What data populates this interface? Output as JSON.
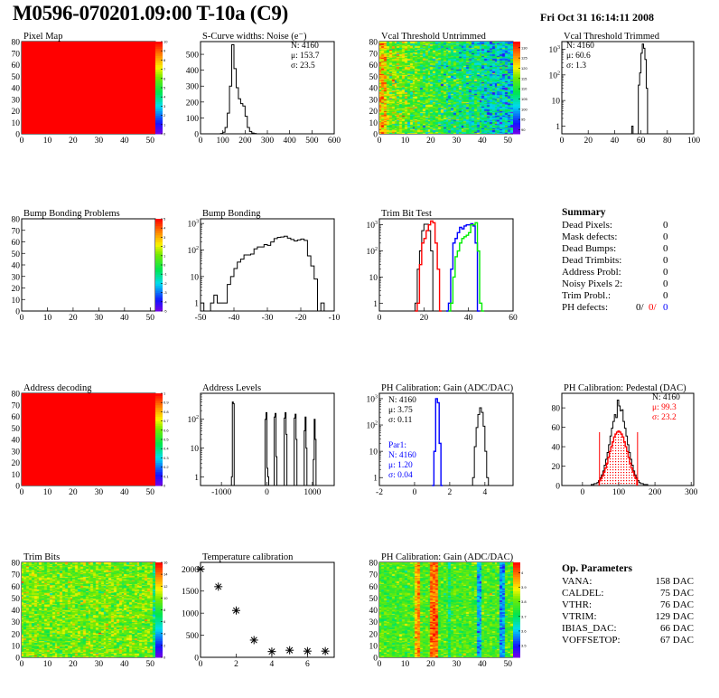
{
  "header": {
    "title": "M0596-070201.09:00 T-10a (C9)",
    "date": "Fri Oct 31 16:14:11 2008"
  },
  "colors": {
    "series_black": "#000000",
    "series_red": "#ff0000",
    "series_blue": "#0000ff",
    "series_green": "#00ee00",
    "palette": "rainbow (purple-blue-cyan-green-yellow-red)"
  },
  "summary": {
    "title": "Summary",
    "items": [
      {
        "label": "Dead Pixels:",
        "value": "0"
      },
      {
        "label": "Mask defects:",
        "value": "0"
      },
      {
        "label": "Dead Bumps:",
        "value": "0"
      },
      {
        "label": "Dead Trimbits:",
        "value": "0"
      },
      {
        "label": "Address Probl:",
        "value": "0"
      },
      {
        "label": "Noisy Pixels 2:",
        "value": "0"
      },
      {
        "label": "Trim Probl.:",
        "value": "0"
      }
    ],
    "ph_defects": {
      "label": "PH defects:",
      "v1": "0/",
      "v2": "0/",
      "v3": "0"
    }
  },
  "op_parameters": {
    "title": "Op. Parameters",
    "items": [
      {
        "label": "VANA:",
        "value": "158 DAC"
      },
      {
        "label": "CALDEL:",
        "value": "75 DAC"
      },
      {
        "label": "VTHR:",
        "value": "76 DAC"
      },
      {
        "label": "VTRIM:",
        "value": "129 DAC"
      },
      {
        "label": "IBIAS_DAC:",
        "value": "66 DAC"
      },
      {
        "label": "VOFFSETOP:",
        "value": "67 DAC"
      }
    ]
  },
  "chart_data": [
    {
      "id": "pixel-map",
      "type": "heatmap",
      "title": "Pixel Map",
      "col": 0,
      "row": 0,
      "xlim": [
        0,
        52
      ],
      "ylim": [
        0,
        80
      ],
      "xticks": [
        0,
        10,
        20,
        30,
        40,
        50
      ],
      "yticks": [
        0,
        10,
        20,
        30,
        40,
        50,
        60,
        70,
        80
      ],
      "zlim": [
        0,
        10
      ],
      "zticks": [
        "0",
        "1",
        "2",
        "3",
        "4",
        "5",
        "6",
        "7",
        "8",
        "9",
        "10"
      ],
      "pattern": "uniform",
      "zvalue": 10
    },
    {
      "id": "s-curve-widths",
      "type": "bar",
      "title": "S-Curve widths: Noise (e⁻)",
      "col": 1,
      "row": 0,
      "xlim": [
        0,
        600
      ],
      "ylim": [
        0,
        580
      ],
      "log": false,
      "xticks": [
        0,
        100,
        200,
        300,
        400,
        500,
        600
      ],
      "yticks": [
        0,
        100,
        200,
        300,
        400,
        500
      ],
      "series": [
        {
          "color": "#000000",
          "start": 80,
          "width": 10,
          "values": [
            0,
            2,
            10,
            40,
            130,
            300,
            560,
            410,
            290,
            220,
            190,
            175,
            110,
            40,
            15,
            5,
            2,
            0
          ]
        }
      ],
      "stats": [
        {
          "color": "#000000",
          "lines": [
            "N: 4160",
            "μ: 153.7",
            "σ: 23.5"
          ]
        }
      ]
    },
    {
      "id": "vcal-threshold-untrimmed",
      "type": "heatmap",
      "title": "Vcal Threshold Untrimmed",
      "col": 2,
      "row": 0,
      "xlim": [
        0,
        52
      ],
      "ylim": [
        0,
        80
      ],
      "xticks": [
        0,
        10,
        20,
        30,
        40,
        50
      ],
      "yticks": [
        0,
        10,
        20,
        30,
        40,
        50,
        60,
        70,
        80
      ],
      "zlim": [
        88,
        133
      ],
      "zticks": [
        "90",
        "95",
        "100",
        "105",
        "110",
        "115",
        "120",
        "125",
        "130"
      ],
      "pattern": "gradient"
    },
    {
      "id": "vcal-threshold-trimmed",
      "type": "bar",
      "title": "Vcal Threshold Trimmed",
      "col": 3,
      "row": 0,
      "xlim": [
        0,
        100
      ],
      "ylim": [
        0.5,
        2000
      ],
      "log": true,
      "xticks": [
        0,
        20,
        40,
        60,
        80,
        100
      ],
      "yticks": [
        1,
        10,
        100,
        1000
      ],
      "series": [
        {
          "color": "#000000",
          "start": 50,
          "width": 1,
          "values": [
            0,
            0,
            0,
            1,
            0,
            0,
            0,
            0,
            40,
            120,
            700,
            1600,
            1100,
            400,
            30,
            0
          ]
        }
      ],
      "stats": [
        {
          "color": "#000000",
          "lines": [
            "N: 4160",
            "μ: 60.6",
            "σ:  1.3"
          ]
        }
      ]
    },
    {
      "id": "bump-bonding-problems",
      "type": "heatmap",
      "title": "Bump Bonding Problems",
      "col": 0,
      "row": 1,
      "xlim": [
        0,
        52
      ],
      "ylim": [
        0,
        80
      ],
      "xticks": [
        0,
        10,
        20,
        30,
        40,
        50
      ],
      "yticks": [
        0,
        10,
        20,
        30,
        40,
        50,
        60,
        70,
        80
      ],
      "zlim": [
        -5,
        5
      ],
      "zticks": [
        "-5",
        "-4",
        "-3",
        "-2",
        "-1",
        "0",
        "1",
        "2",
        "3",
        "4",
        "5"
      ],
      "pattern": "empty"
    },
    {
      "id": "bump-bonding",
      "type": "bar",
      "title": "Bump Bonding",
      "col": 1,
      "row": 1,
      "xlim": [
        -50,
        -10
      ],
      "ylim": [
        0.5,
        1500
      ],
      "log": true,
      "xticks": [
        -50,
        -40,
        -30,
        -20,
        -10
      ],
      "yticks": [
        1,
        10,
        100,
        1000
      ],
      "series": [
        {
          "color": "#000000",
          "start": -50,
          "width": 1,
          "values": [
            1,
            0,
            0,
            1,
            2,
            1,
            1,
            1,
            5,
            10,
            20,
            35,
            45,
            65,
            65,
            70,
            110,
            130,
            130,
            160,
            150,
            200,
            270,
            300,
            310,
            330,
            280,
            250,
            220,
            240,
            260,
            230,
            60,
            25,
            8,
            0,
            1,
            0,
            0,
            0
          ]
        }
      ]
    },
    {
      "id": "trim-bit-test",
      "type": "bar",
      "title": "Trim Bit Test",
      "col": 2,
      "row": 1,
      "xlim": [
        0,
        60
      ],
      "ylim": [
        0.5,
        1700
      ],
      "log": true,
      "xticks": [
        0,
        20,
        40,
        60
      ],
      "yticks": [
        1,
        10,
        100,
        1000
      ],
      "series": [
        {
          "color": "#000000",
          "start": 15,
          "width": 1,
          "values": [
            0,
            1,
            20,
            100,
            600,
            1050,
            1050,
            600,
            100,
            0
          ]
        },
        {
          "color": "#ff0000",
          "start": 16,
          "width": 1,
          "values": [
            0,
            1,
            30,
            200,
            300,
            600,
            1000,
            1400,
            1200,
            200,
            20,
            0
          ]
        },
        {
          "color": "#0000ff",
          "start": 30,
          "width": 1,
          "values": [
            0,
            1,
            20,
            200,
            300,
            500,
            800,
            700,
            900,
            1000,
            1000,
            1100,
            900,
            200,
            0
          ]
        },
        {
          "color": "#00ee00",
          "start": 31,
          "width": 1,
          "values": [
            0,
            1,
            10,
            60,
            100,
            200,
            300,
            350,
            400,
            500,
            1000,
            1000,
            1200,
            100,
            1,
            0
          ]
        }
      ]
    },
    {
      "id": "address-decoding",
      "type": "heatmap",
      "title": "Address decoding",
      "col": 0,
      "row": 2,
      "xlim": [
        0,
        52
      ],
      "ylim": [
        0,
        80
      ],
      "xticks": [
        0,
        10,
        20,
        30,
        40,
        50
      ],
      "yticks": [
        0,
        10,
        20,
        30,
        40,
        50,
        60,
        70,
        80
      ],
      "zlim": [
        0,
        1
      ],
      "zticks": [
        "0",
        "0.1",
        "0.2",
        "0.3",
        "0.4",
        "0.5",
        "0.6",
        "0.7",
        "0.8",
        "0.9",
        "1"
      ],
      "pattern": "uniform",
      "zvalue": 1
    },
    {
      "id": "address-levels",
      "type": "bar",
      "title": "Address Levels",
      "col": 1,
      "row": 2,
      "xlim": [
        -1460,
        1480
      ],
      "ylim": [
        0.5,
        800
      ],
      "log": true,
      "xticks": [
        -1000,
        0,
        1000
      ],
      "yticks": [
        1,
        10,
        100
      ],
      "series": [
        {
          "color": "#000000",
          "start": -780,
          "width": 20,
          "values": [
            1,
            400,
            350,
            0
          ]
        },
        {
          "color": "#000000",
          "start": -40,
          "width": 20,
          "values": [
            100,
            170,
            2,
            1,
            0
          ]
        },
        {
          "color": "#000000",
          "start": 160,
          "width": 20,
          "values": [
            120,
            160,
            5,
            0
          ]
        },
        {
          "color": "#000000",
          "start": 380,
          "width": 20,
          "values": [
            110,
            170,
            30,
            0
          ]
        },
        {
          "color": "#000000",
          "start": 600,
          "width": 20,
          "values": [
            110,
            150,
            20,
            0
          ]
        },
        {
          "color": "#000000",
          "start": 820,
          "width": 20,
          "values": [
            40,
            120,
            10,
            0
          ]
        },
        {
          "color": "#000000",
          "start": 1020,
          "width": 20,
          "values": [
            4,
            100,
            20,
            0
          ]
        }
      ]
    },
    {
      "id": "ph-calibration-gain",
      "type": "bar",
      "title": "PH Calibration: Gain (ADC/DAC)",
      "col": 2,
      "row": 2,
      "xlim": [
        -2,
        5.6
      ],
      "ylim": [
        0.5,
        1600
      ],
      "log": true,
      "xticks": [
        -2,
        0,
        2,
        4
      ],
      "yticks": [
        1,
        10,
        100,
        1000
      ],
      "series": [
        {
          "color": "#000000",
          "start": 3.3,
          "width": 0.1,
          "values": [
            1,
            15,
            80,
            250,
            450,
            300,
            90,
            10,
            1,
            0
          ]
        },
        {
          "color": "#0000ff",
          "start": 1.0,
          "width": 0.1,
          "values": [
            0,
            10,
            1000,
            700,
            20,
            0
          ]
        }
      ],
      "stats": [
        {
          "color": "#000000",
          "lines": [
            "N: 4160",
            "μ: 3.75",
            "σ: 0.11"
          ]
        },
        {
          "color": "#0000ff",
          "lines": [
            "Par1:",
            "N: 4160",
            "μ: 1.20",
            "σ: 0.04"
          ]
        }
      ]
    },
    {
      "id": "ph-calibration-pedestal",
      "type": "bar",
      "title": "PH Calibration: Pedestal (DAC)",
      "col": 3,
      "row": 2,
      "xlim": [
        -57,
        307
      ],
      "ylim": [
        0,
        95
      ],
      "log": false,
      "xticks": [
        0,
        100,
        200,
        300
      ],
      "yticks": [
        0,
        20,
        40,
        60,
        80
      ],
      "series": [
        {
          "color": "#000000",
          "start": 20,
          "width": 4,
          "values": [
            0,
            1,
            1,
            2,
            2,
            3,
            5,
            8,
            11,
            15,
            21,
            27,
            34,
            42,
            51,
            59,
            66,
            73,
            70,
            88,
            82,
            77,
            78,
            66,
            59,
            51,
            42,
            34,
            27,
            21,
            15,
            11,
            8,
            5,
            3,
            2,
            2,
            1,
            1,
            1,
            0,
            0,
            0,
            0,
            0
          ]
        },
        {
          "color": "#ff0000",
          "hatched": true,
          "start": 46,
          "width": 4,
          "values": [
            5,
            7,
            10,
            14,
            18,
            23,
            29,
            35,
            40,
            45,
            50,
            53,
            55,
            56,
            55,
            53,
            50,
            45,
            40,
            35,
            29,
            23,
            18,
            14,
            10,
            7
          ]
        }
      ],
      "cut_lines": [
        {
          "x": 47,
          "y": 55
        },
        {
          "x": 152,
          "y": 55
        }
      ],
      "stats": [
        {
          "color": "#000000",
          "lines": [
            "N: 4160"
          ]
        },
        {
          "color": "#ff0000",
          "lines": [
            "μ: 99.3",
            "σ: 23.2"
          ]
        }
      ]
    },
    {
      "id": "trim-bits",
      "type": "heatmap",
      "title": "Trim Bits",
      "col": 0,
      "row": 3,
      "xlim": [
        0,
        52
      ],
      "ylim": [
        0,
        80
      ],
      "xticks": [
        0,
        10,
        20,
        30,
        40,
        50
      ],
      "yticks": [
        0,
        10,
        20,
        30,
        40,
        50,
        60,
        70,
        80
      ],
      "zlim": [
        0,
        16
      ],
      "zticks": [
        "0",
        "2",
        "4",
        "6",
        "8",
        "10",
        "12",
        "14",
        "16"
      ],
      "pattern": "noise"
    },
    {
      "id": "temperature-calibration",
      "type": "scatter",
      "title": "Temperature calibration",
      "col": 1,
      "row": 3,
      "xlim": [
        0,
        7.5
      ],
      "ylim": [
        0,
        2150
      ],
      "xticks": [
        0,
        2,
        4,
        6
      ],
      "yticks": [
        0,
        500,
        1000,
        1500,
        2000
      ],
      "x": [
        0,
        1,
        2,
        3,
        4,
        5,
        6,
        7
      ],
      "y": [
        2000,
        1600,
        1060,
        390,
        130,
        160,
        140,
        140
      ]
    },
    {
      "id": "ph-calibration-gain-map",
      "type": "heatmap",
      "title": "PH Calibration: Gain (ADC/DAC)",
      "col": 2,
      "row": 3,
      "xlim": [
        0,
        52
      ],
      "ylim": [
        0,
        80
      ],
      "xticks": [
        0,
        10,
        20,
        30,
        40,
        50
      ],
      "yticks": [
        0,
        10,
        20,
        30,
        40,
        50,
        60,
        70,
        80
      ],
      "zlim": [
        3.42,
        4.07
      ],
      "zticks": [
        "3.5",
        "3.6",
        "3.7",
        "3.8",
        "3.9",
        "4"
      ],
      "pattern": "columns"
    }
  ]
}
